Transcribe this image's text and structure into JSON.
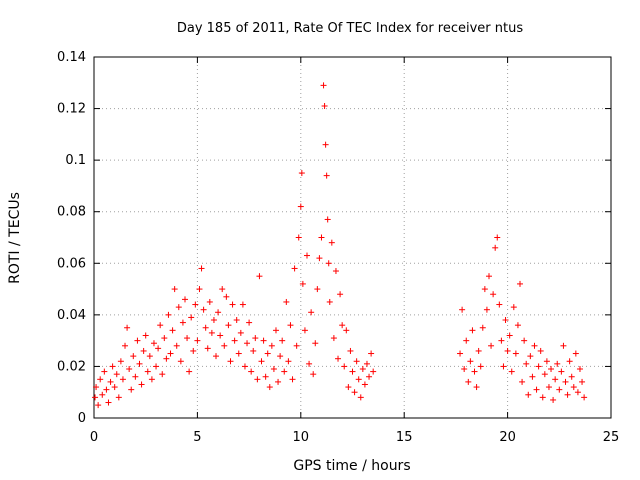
{
  "chart_data": {
    "type": "scatter",
    "title": "Day 185 of 2011, Rate Of TEC Index for receiver ntus",
    "xlabel": "GPS time / hours",
    "ylabel": "ROTI / TECUs",
    "xlim": [
      0,
      25
    ],
    "ylim": [
      0,
      0.14
    ],
    "xticks": [
      0,
      5,
      10,
      15,
      20,
      25
    ],
    "xtick_labels": [
      "0",
      "5",
      "10",
      "15",
      "20",
      "25"
    ],
    "yticks": [
      0,
      0.02,
      0.04,
      0.06,
      0.08,
      0.1,
      0.12,
      0.14
    ],
    "ytick_labels": [
      "0",
      "0.02",
      "0.04",
      "0.06",
      "0.08",
      "0.1",
      "0.12",
      "0.14"
    ],
    "grid": true,
    "marker": "+",
    "color": "#ff0000",
    "series": [
      {
        "points": [
          [
            0.05,
            0.008
          ],
          [
            0.1,
            0.012
          ],
          [
            0.2,
            0.005
          ],
          [
            0.3,
            0.015
          ],
          [
            0.4,
            0.009
          ],
          [
            0.5,
            0.018
          ],
          [
            0.6,
            0.011
          ],
          [
            0.7,
            0.006
          ],
          [
            0.8,
            0.014
          ],
          [
            0.9,
            0.02
          ],
          [
            1.0,
            0.012
          ],
          [
            1.1,
            0.017
          ],
          [
            1.2,
            0.008
          ],
          [
            1.3,
            0.022
          ],
          [
            1.4,
            0.015
          ],
          [
            1.5,
            0.028
          ],
          [
            1.6,
            0.035
          ],
          [
            1.7,
            0.019
          ],
          [
            1.8,
            0.011
          ],
          [
            1.9,
            0.024
          ],
          [
            2.0,
            0.016
          ],
          [
            2.1,
            0.03
          ],
          [
            2.2,
            0.021
          ],
          [
            2.3,
            0.013
          ],
          [
            2.4,
            0.026
          ],
          [
            2.5,
            0.032
          ],
          [
            2.6,
            0.018
          ],
          [
            2.7,
            0.024
          ],
          [
            2.8,
            0.015
          ],
          [
            2.9,
            0.029
          ],
          [
            3.0,
            0.02
          ],
          [
            3.1,
            0.027
          ],
          [
            3.2,
            0.036
          ],
          [
            3.3,
            0.017
          ],
          [
            3.4,
            0.031
          ],
          [
            3.5,
            0.023
          ],
          [
            3.6,
            0.04
          ],
          [
            3.7,
            0.025
          ],
          [
            3.8,
            0.034
          ],
          [
            3.9,
            0.05
          ],
          [
            4.0,
            0.028
          ],
          [
            4.1,
            0.043
          ],
          [
            4.2,
            0.022
          ],
          [
            4.3,
            0.037
          ],
          [
            4.4,
            0.046
          ],
          [
            4.5,
            0.031
          ],
          [
            4.6,
            0.018
          ],
          [
            4.7,
            0.039
          ],
          [
            4.8,
            0.026
          ],
          [
            4.9,
            0.044
          ],
          [
            5.0,
            0.03
          ],
          [
            5.1,
            0.05
          ],
          [
            5.2,
            0.058
          ],
          [
            5.3,
            0.042
          ],
          [
            5.4,
            0.035
          ],
          [
            5.5,
            0.027
          ],
          [
            5.6,
            0.045
          ],
          [
            5.7,
            0.033
          ],
          [
            5.8,
            0.038
          ],
          [
            5.9,
            0.024
          ],
          [
            6.0,
            0.041
          ],
          [
            6.1,
            0.032
          ],
          [
            6.2,
            0.05
          ],
          [
            6.3,
            0.028
          ],
          [
            6.4,
            0.047
          ],
          [
            6.5,
            0.036
          ],
          [
            6.6,
            0.022
          ],
          [
            6.7,
            0.044
          ],
          [
            6.8,
            0.03
          ],
          [
            6.9,
            0.038
          ],
          [
            7.0,
            0.025
          ],
          [
            7.1,
            0.033
          ],
          [
            7.2,
            0.044
          ],
          [
            7.3,
            0.02
          ],
          [
            7.4,
            0.029
          ],
          [
            7.5,
            0.037
          ],
          [
            7.6,
            0.018
          ],
          [
            7.7,
            0.026
          ],
          [
            7.8,
            0.031
          ],
          [
            7.9,
            0.015
          ],
          [
            8.0,
            0.055
          ],
          [
            8.1,
            0.022
          ],
          [
            8.2,
            0.03
          ],
          [
            8.3,
            0.016
          ],
          [
            8.4,
            0.025
          ],
          [
            8.5,
            0.012
          ],
          [
            8.6,
            0.028
          ],
          [
            8.7,
            0.019
          ],
          [
            8.8,
            0.034
          ],
          [
            8.9,
            0.014
          ],
          [
            9.0,
            0.024
          ],
          [
            9.1,
            0.03
          ],
          [
            9.2,
            0.018
          ],
          [
            9.3,
            0.045
          ],
          [
            9.4,
            0.022
          ],
          [
            9.5,
            0.036
          ],
          [
            9.6,
            0.015
          ],
          [
            9.7,
            0.058
          ],
          [
            9.8,
            0.028
          ],
          [
            9.9,
            0.07
          ],
          [
            10.0,
            0.082
          ],
          [
            10.05,
            0.095
          ],
          [
            10.1,
            0.052
          ],
          [
            10.2,
            0.034
          ],
          [
            10.3,
            0.063
          ],
          [
            10.4,
            0.021
          ],
          [
            10.5,
            0.041
          ],
          [
            10.6,
            0.017
          ],
          [
            10.7,
            0.029
          ],
          [
            10.8,
            0.05
          ],
          [
            10.9,
            0.062
          ],
          [
            11.0,
            0.07
          ],
          [
            11.1,
            0.129
          ],
          [
            11.15,
            0.121
          ],
          [
            11.2,
            0.106
          ],
          [
            11.25,
            0.094
          ],
          [
            11.3,
            0.077
          ],
          [
            11.35,
            0.06
          ],
          [
            11.4,
            0.045
          ],
          [
            11.5,
            0.068
          ],
          [
            11.6,
            0.031
          ],
          [
            11.7,
            0.057
          ],
          [
            11.8,
            0.023
          ],
          [
            11.9,
            0.048
          ],
          [
            12.0,
            0.036
          ],
          [
            12.1,
            0.02
          ],
          [
            12.2,
            0.034
          ],
          [
            12.3,
            0.012
          ],
          [
            12.4,
            0.026
          ],
          [
            12.5,
            0.018
          ],
          [
            12.6,
            0.01
          ],
          [
            12.7,
            0.022
          ],
          [
            12.8,
            0.015
          ],
          [
            12.9,
            0.008
          ],
          [
            13.0,
            0.019
          ],
          [
            13.1,
            0.013
          ],
          [
            13.2,
            0.021
          ],
          [
            13.3,
            0.016
          ],
          [
            13.4,
            0.025
          ],
          [
            13.5,
            0.018
          ],
          [
            17.7,
            0.025
          ],
          [
            17.8,
            0.042
          ],
          [
            17.9,
            0.019
          ],
          [
            18.0,
            0.03
          ],
          [
            18.1,
            0.014
          ],
          [
            18.2,
            0.022
          ],
          [
            18.3,
            0.034
          ],
          [
            18.4,
            0.018
          ],
          [
            18.5,
            0.012
          ],
          [
            18.6,
            0.026
          ],
          [
            18.7,
            0.02
          ],
          [
            18.8,
            0.035
          ],
          [
            18.9,
            0.05
          ],
          [
            19.0,
            0.042
          ],
          [
            19.1,
            0.055
          ],
          [
            19.2,
            0.028
          ],
          [
            19.3,
            0.048
          ],
          [
            19.4,
            0.066
          ],
          [
            19.5,
            0.07
          ],
          [
            19.6,
            0.044
          ],
          [
            19.7,
            0.03
          ],
          [
            19.8,
            0.02
          ],
          [
            19.9,
            0.038
          ],
          [
            20.0,
            0.026
          ],
          [
            20.1,
            0.032
          ],
          [
            20.2,
            0.018
          ],
          [
            20.3,
            0.043
          ],
          [
            20.4,
            0.025
          ],
          [
            20.5,
            0.036
          ],
          [
            20.6,
            0.052
          ],
          [
            20.7,
            0.014
          ],
          [
            20.8,
            0.03
          ],
          [
            20.9,
            0.021
          ],
          [
            21.0,
            0.009
          ],
          [
            21.1,
            0.024
          ],
          [
            21.2,
            0.016
          ],
          [
            21.3,
            0.028
          ],
          [
            21.4,
            0.011
          ],
          [
            21.5,
            0.02
          ],
          [
            21.6,
            0.026
          ],
          [
            21.7,
            0.008
          ],
          [
            21.8,
            0.017
          ],
          [
            21.9,
            0.022
          ],
          [
            22.0,
            0.012
          ],
          [
            22.1,
            0.019
          ],
          [
            22.2,
            0.007
          ],
          [
            22.3,
            0.015
          ],
          [
            22.4,
            0.021
          ],
          [
            22.5,
            0.011
          ],
          [
            22.6,
            0.018
          ],
          [
            22.7,
            0.028
          ],
          [
            22.8,
            0.014
          ],
          [
            22.9,
            0.009
          ],
          [
            23.0,
            0.022
          ],
          [
            23.1,
            0.016
          ],
          [
            23.2,
            0.012
          ],
          [
            23.3,
            0.025
          ],
          [
            23.4,
            0.01
          ],
          [
            23.5,
            0.019
          ],
          [
            23.6,
            0.014
          ],
          [
            23.7,
            0.008
          ]
        ]
      }
    ]
  }
}
